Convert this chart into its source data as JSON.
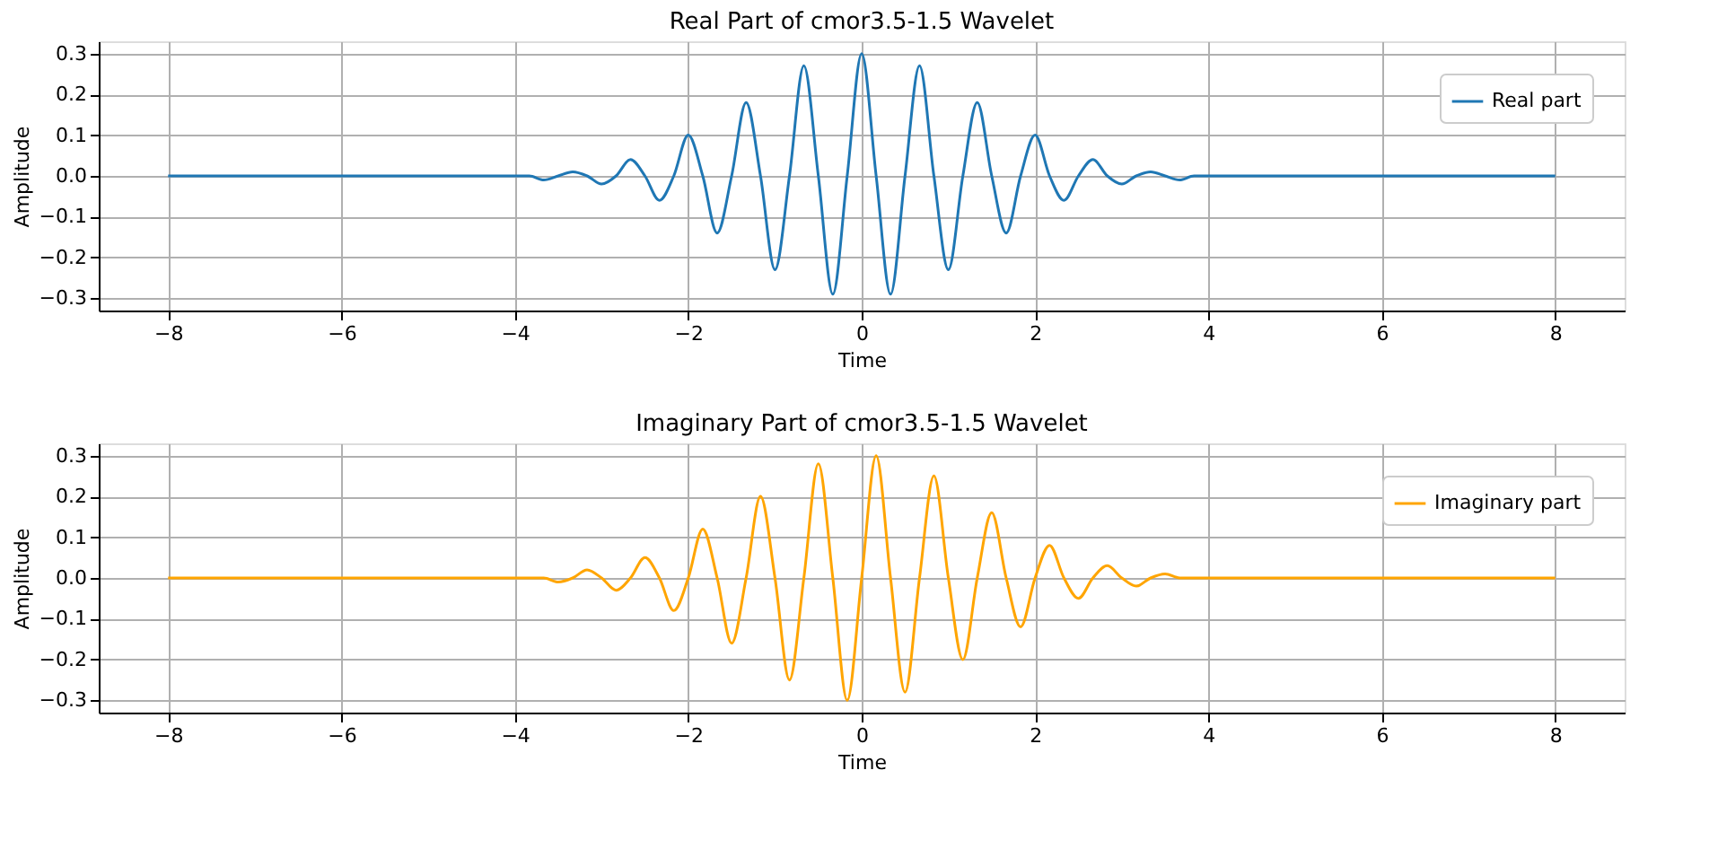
{
  "chart_data": [
    {
      "type": "line",
      "title": "Real Part of cmor3.5-1.5 Wavelet",
      "xlabel": "Time",
      "ylabel": "Amplitude",
      "x": [
        -8,
        -4.5,
        -4.333,
        -4.167,
        -4,
        -3.833,
        -3.667,
        -3.5,
        -3.333,
        -3.167,
        -3,
        -2.833,
        -2.667,
        -2.5,
        -2.333,
        -2.167,
        -2,
        -1.833,
        -1.667,
        -1.5,
        -1.333,
        -1.167,
        -1,
        -0.833,
        -0.667,
        -0.5,
        -0.333,
        -0.167,
        0,
        0.167,
        0.333,
        0.5,
        0.667,
        0.833,
        1,
        1.167,
        1.333,
        1.5,
        1.667,
        1.833,
        2,
        2.167,
        2.333,
        2.5,
        2.667,
        2.833,
        3,
        3.167,
        3.333,
        3.5,
        3.667,
        3.833,
        4,
        4.167,
        4.333,
        4.5,
        8
      ],
      "series": [
        {
          "name": "Real part",
          "color": "#1f77b4",
          "values": [
            0,
            0,
            0,
            0,
            0,
            0,
            -0.01,
            0,
            0.01,
            0,
            -0.02,
            0,
            0.04,
            0,
            -0.06,
            0,
            0.1,
            0,
            -0.14,
            0,
            0.18,
            0,
            -0.23,
            0,
            0.27,
            0,
            -0.29,
            0,
            0.3,
            0,
            -0.29,
            0,
            0.27,
            0,
            -0.23,
            0,
            0.18,
            0,
            -0.14,
            0,
            0.1,
            0,
            -0.06,
            0,
            0.04,
            0,
            -0.02,
            0,
            0.01,
            0,
            -0.01,
            0,
            0,
            0,
            0,
            0,
            0
          ]
        }
      ],
      "xlim": [
        -8.8,
        8.8
      ],
      "xticks": [
        -8,
        -6,
        -4,
        -2,
        0,
        2,
        4,
        6,
        8
      ],
      "ylim": [
        -0.33,
        0.33
      ],
      "yticks": [
        -0.3,
        -0.2,
        -0.1,
        {
          "value": 0,
          "label": "0.0"
        },
        0.1,
        0.2,
        0.3
      ],
      "grid": true,
      "legend": "top right",
      "marker": "none",
      "line_style": "solid"
    },
    {
      "type": "line",
      "title": "Imaginary Part of cmor3.5-1.5 Wavelet",
      "xlabel": "Time",
      "ylabel": "Amplitude",
      "x": [
        -8,
        -4.5,
        -4.333,
        -4.167,
        -4,
        -3.833,
        -3.667,
        -3.5,
        -3.333,
        -3.167,
        -3,
        -2.833,
        -2.667,
        -2.5,
        -2.333,
        -2.167,
        -2,
        -1.833,
        -1.667,
        -1.5,
        -1.333,
        -1.167,
        -1,
        -0.833,
        -0.667,
        -0.5,
        -0.333,
        -0.167,
        0,
        0.167,
        0.333,
        0.5,
        0.667,
        0.833,
        1,
        1.167,
        1.333,
        1.5,
        1.667,
        1.833,
        2,
        2.167,
        2.333,
        2.5,
        2.667,
        2.833,
        3,
        3.167,
        3.333,
        3.5,
        3.667,
        3.833,
        4,
        4.167,
        4.333,
        4.5,
        8
      ],
      "series": [
        {
          "name": "Imaginary part",
          "color": "#ffa500",
          "values": [
            0,
            0,
            0,
            0,
            0,
            0,
            0,
            -0.01,
            0,
            0.02,
            0,
            -0.03,
            0,
            0.05,
            0,
            -0.08,
            0,
            0.12,
            0,
            -0.16,
            0,
            0.2,
            0,
            -0.25,
            0,
            0.28,
            0,
            -0.3,
            0,
            0.3,
            0,
            -0.28,
            0,
            0.25,
            0,
            -0.2,
            0,
            0.16,
            0,
            -0.12,
            0,
            0.08,
            0,
            -0.05,
            0,
            0.03,
            0,
            -0.02,
            0,
            0.01,
            0,
            0,
            0,
            0,
            0,
            0,
            0
          ]
        }
      ],
      "xlim": [
        -8.8,
        8.8
      ],
      "xticks": [
        -8,
        -6,
        -4,
        -2,
        0,
        2,
        4,
        6,
        8
      ],
      "ylim": [
        -0.33,
        0.33
      ],
      "yticks": [
        -0.3,
        -0.2,
        -0.1,
        {
          "value": 0,
          "label": "0.0"
        },
        0.1,
        0.2,
        0.3
      ],
      "grid": true,
      "legend": "top right",
      "marker": "none",
      "line_style": "solid"
    }
  ]
}
